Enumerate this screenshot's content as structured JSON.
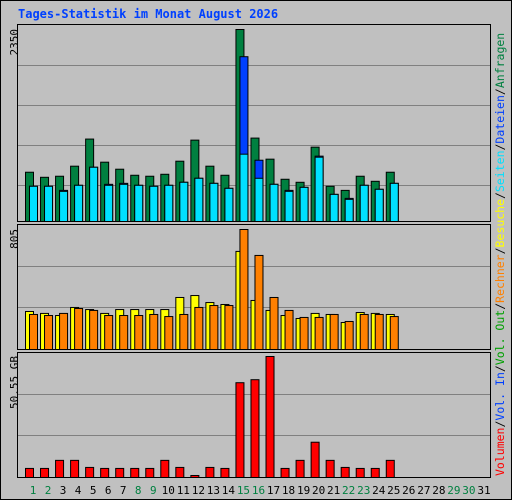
{
  "legend_separator": "/",
  "chart_data": [
    {
      "type": "bar",
      "title": "Tages-Statistik im Monat August 2026",
      "ylim": [
        0,
        2350
      ],
      "yticks": [
        2350
      ],
      "series": [
        {
          "name": "Anfragen",
          "color": "#008040",
          "values": [
            603,
            541,
            554,
            677,
            1009,
            726,
            640,
            566,
            554,
            578,
            738,
            996,
            677,
            566,
            2350,
            1021,
            763,
            517,
            480,
            910,
            431,
            381,
            554,
            492,
            603,
            null,
            null,
            null,
            null,
            null,
            null
          ]
        },
        {
          "name": "Dateien",
          "color": "#0040ff",
          "values": [
            431,
            431,
            381,
            443,
            664,
            455,
            467,
            443,
            431,
            443,
            480,
            529,
            467,
            406,
            2017,
            750,
            455,
            381,
            418,
            800,
            332,
            283,
            443,
            394,
            467,
            null,
            null,
            null,
            null,
            null,
            null
          ]
        },
        {
          "name": "Seiten",
          "color": "#00e0ff",
          "values": [
            431,
            431,
            369,
            443,
            664,
            443,
            455,
            443,
            431,
            443,
            480,
            529,
            467,
            406,
            824,
            529,
            455,
            369,
            418,
            787,
            332,
            271,
            443,
            394,
            467,
            null,
            null,
            null,
            null,
            null,
            null
          ]
        }
      ]
    },
    {
      "type": "bar",
      "ylim": [
        0,
        805
      ],
      "yticks": [
        805
      ],
      "series": [
        {
          "name": "Besuche",
          "color": "#ffff00",
          "values": [
            255,
            242,
            228,
            282,
            268,
            242,
            268,
            268,
            268,
            268,
            349,
            362,
            315,
            302,
            658,
            329,
            262,
            228,
            208,
            242,
            235,
            181,
            248,
            242,
            235,
            null,
            null,
            null,
            null,
            null,
            null
          ]
        },
        {
          "name": "Rechner",
          "color": "#ff8000",
          "values": [
            235,
            228,
            242,
            275,
            262,
            228,
            228,
            228,
            235,
            221,
            235,
            282,
            295,
            295,
            805,
            631,
            349,
            262,
            215,
            215,
            235,
            188,
            235,
            235,
            221,
            null,
            null,
            null,
            null,
            null,
            null
          ]
        }
      ]
    },
    {
      "type": "bar",
      "ylim": [
        0,
        50.55
      ],
      "yticks": [
        {
          "value": 50.55,
          "label": "50.55 GB"
        }
      ],
      "categories": [
        "1",
        "2",
        "3",
        "4",
        "5",
        "6",
        "7",
        "8",
        "9",
        "10",
        "11",
        "12",
        "13",
        "14",
        "15",
        "16",
        "17",
        "18",
        "19",
        "20",
        "21",
        "22",
        "23",
        "24",
        "25",
        "26",
        "27",
        "28",
        "29",
        "30",
        "31"
      ],
      "category_colors": [
        "#008040",
        "#008040",
        "#000000",
        "#000000",
        "#000000",
        "#000000",
        "#000000",
        "#008040",
        "#008040",
        "#000000",
        "#000000",
        "#000000",
        "#000000",
        "#000000",
        "#008040",
        "#008040",
        "#000000",
        "#000000",
        "#000000",
        "#000000",
        "#000000",
        "#008040",
        "#008040",
        "#000000",
        "#000000",
        "#000000",
        "#000000",
        "#000000",
        "#008040",
        "#008040",
        "#000000"
      ],
      "series": [
        {
          "name": "Vol. Out",
          "color": "#00a000"
        },
        {
          "name": "Vol. In",
          "color": "#0040ff"
        },
        {
          "name": "Volumen",
          "color": "#ff0000",
          "values": [
            3.79,
            3.79,
            7.16,
            7.16,
            4.21,
            3.79,
            3.79,
            3.79,
            3.79,
            7.16,
            4.21,
            0.84,
            4.21,
            3.79,
            39.6,
            40.86,
            50.55,
            3.79,
            7.16,
            14.74,
            7.16,
            4.21,
            3.79,
            3.79,
            7.16,
            null,
            null,
            null,
            null,
            null,
            null
          ]
        }
      ]
    }
  ]
}
